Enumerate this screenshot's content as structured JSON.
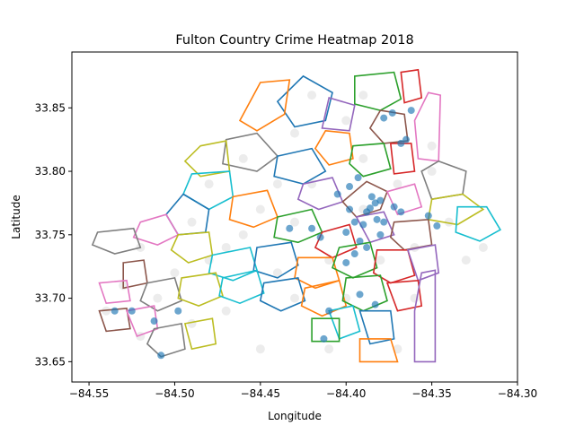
{
  "chart_data": {
    "type": "scatter",
    "title": "Fulton Country Crime Heatmap 2018",
    "xlabel": "Longitude",
    "ylabel": "Latitude",
    "xlim": [
      -84.56,
      -84.3
    ],
    "ylim": [
      33.634,
      33.894
    ],
    "xticks": [
      -84.55,
      -84.5,
      -84.45,
      -84.4,
      -84.35,
      -84.3
    ],
    "xtick_labels": [
      "−84.55",
      "−84.50",
      "−84.45",
      "−84.40",
      "−84.35",
      "−84.30"
    ],
    "yticks": [
      33.65,
      33.7,
      33.75,
      33.8,
      33.85
    ],
    "ytick_labels": [
      "33.65",
      "33.70",
      "33.75",
      "33.80",
      "33.85"
    ],
    "grid": false,
    "legend": "none",
    "points_color": "#1f77b4",
    "background_points_color": "#c8c8c8",
    "boundary_colors": [
      "#1f77b4",
      "#ff7f0e",
      "#2ca02c",
      "#d62728",
      "#9467bd",
      "#8c564b",
      "#e377c2",
      "#7f7f7f",
      "#bcbd22",
      "#17becf"
    ],
    "dense_points": [
      [
        -84.385,
        33.78
      ],
      [
        -84.383,
        33.775
      ],
      [
        -84.38,
        33.777
      ],
      [
        -84.386,
        33.771
      ],
      [
        -84.388,
        33.768
      ],
      [
        -84.382,
        33.762
      ],
      [
        -84.378,
        33.76
      ],
      [
        -84.39,
        33.758
      ],
      [
        -84.395,
        33.76
      ],
      [
        -84.4,
        33.752
      ],
      [
        -84.392,
        33.745
      ],
      [
        -84.388,
        33.74
      ],
      [
        -84.395,
        33.735
      ],
      [
        -84.4,
        33.728
      ],
      [
        -84.365,
        33.825
      ],
      [
        -84.368,
        33.822
      ],
      [
        -84.362,
        33.848
      ],
      [
        -84.378,
        33.842
      ],
      [
        -84.373,
        33.846
      ],
      [
        -84.393,
        33.795
      ],
      [
        -84.398,
        33.788
      ],
      [
        -84.405,
        33.782
      ],
      [
        -84.372,
        33.772
      ],
      [
        -84.368,
        33.768
      ],
      [
        -84.352,
        33.765
      ],
      [
        -84.347,
        33.757
      ],
      [
        -84.415,
        33.748
      ],
      [
        -84.42,
        33.755
      ],
      [
        -84.41,
        33.69
      ],
      [
        -84.392,
        33.703
      ],
      [
        -84.383,
        33.695
      ],
      [
        -84.413,
        33.668
      ],
      [
        -84.508,
        33.655
      ],
      [
        -84.512,
        33.682
      ],
      [
        -84.498,
        33.69
      ],
      [
        -84.525,
        33.69
      ],
      [
        -84.535,
        33.69
      ],
      [
        -84.433,
        33.755
      ],
      [
        -84.398,
        33.77
      ],
      [
        -84.38,
        33.75
      ]
    ],
    "background_points": [
      [
        -84.54,
        33.69
      ],
      [
        -84.53,
        33.71
      ],
      [
        -84.52,
        33.74
      ],
      [
        -84.51,
        33.7
      ],
      [
        -84.5,
        33.72
      ],
      [
        -84.49,
        33.76
      ],
      [
        -84.48,
        33.79
      ],
      [
        -84.47,
        33.74
      ],
      [
        -84.46,
        33.81
      ],
      [
        -84.45,
        33.77
      ],
      [
        -84.44,
        33.72
      ],
      [
        -84.43,
        33.83
      ],
      [
        -84.42,
        33.79
      ],
      [
        -84.41,
        33.73
      ],
      [
        -84.4,
        33.84
      ],
      [
        -84.39,
        33.81
      ],
      [
        -84.38,
        33.73
      ],
      [
        -84.37,
        33.79
      ],
      [
        -84.36,
        33.74
      ],
      [
        -84.35,
        33.8
      ],
      [
        -84.34,
        33.76
      ],
      [
        -84.33,
        33.73
      ],
      [
        -84.36,
        33.7
      ],
      [
        -84.37,
        33.66
      ],
      [
        -84.43,
        33.7
      ],
      [
        -84.47,
        33.69
      ],
      [
        -84.49,
        33.68
      ],
      [
        -84.45,
        33.66
      ],
      [
        -84.41,
        33.66
      ],
      [
        -84.39,
        33.77
      ],
      [
        -84.44,
        33.79
      ],
      [
        -84.42,
        33.86
      ],
      [
        -84.39,
        33.86
      ],
      [
        -84.35,
        33.82
      ],
      [
        -84.32,
        33.74
      ],
      [
        -84.52,
        33.67
      ],
      [
        -84.48,
        33.73
      ],
      [
        -84.46,
        33.75
      ],
      [
        -84.43,
        33.76
      ],
      [
        -84.4,
        33.7
      ]
    ],
    "boundaries": [
      [
        [
          -84.44,
          33.855
        ],
        [
          -84.425,
          33.875
        ],
        [
          -84.408,
          33.862
        ],
        [
          -84.412,
          33.84
        ],
        [
          -84.43,
          33.835
        ]
      ],
      [
        [
          -84.462,
          33.84
        ],
        [
          -84.45,
          33.87
        ],
        [
          -84.433,
          33.872
        ],
        [
          -84.436,
          33.845
        ],
        [
          -84.452,
          33.832
        ]
      ],
      [
        [
          -84.395,
          33.875
        ],
        [
          -84.372,
          33.878
        ],
        [
          -84.368,
          33.857
        ],
        [
          -84.38,
          33.848
        ],
        [
          -84.395,
          33.853
        ]
      ],
      [
        [
          -84.368,
          33.878
        ],
        [
          -84.358,
          33.88
        ],
        [
          -84.356,
          33.858
        ],
        [
          -84.366,
          33.854
        ]
      ],
      [
        [
          -84.41,
          33.858
        ],
        [
          -84.395,
          33.852
        ],
        [
          -84.398,
          33.832
        ],
        [
          -84.414,
          33.834
        ]
      ],
      [
        [
          -84.38,
          33.848
        ],
        [
          -84.366,
          33.845
        ],
        [
          -84.364,
          33.824
        ],
        [
          -84.378,
          33.822
        ],
        [
          -84.386,
          33.834
        ]
      ],
      [
        [
          -84.352,
          33.862
        ],
        [
          -84.345,
          33.86
        ],
        [
          -84.346,
          33.808
        ],
        [
          -84.358,
          33.81
        ],
        [
          -84.36,
          33.84
        ]
      ],
      [
        [
          -84.47,
          33.825
        ],
        [
          -84.452,
          33.83
        ],
        [
          -84.44,
          33.812
        ],
        [
          -84.452,
          33.8
        ],
        [
          -84.472,
          33.806
        ]
      ],
      [
        [
          -84.485,
          33.82
        ],
        [
          -84.47,
          33.824
        ],
        [
          -84.468,
          33.8
        ],
        [
          -84.485,
          33.796
        ],
        [
          -84.494,
          33.808
        ]
      ],
      [
        [
          -84.49,
          33.798
        ],
        [
          -84.468,
          33.8
        ],
        [
          -84.466,
          33.78
        ],
        [
          -84.48,
          33.77
        ],
        [
          -84.495,
          33.782
        ]
      ],
      [
        [
          -84.44,
          33.812
        ],
        [
          -84.42,
          33.818
        ],
        [
          -84.412,
          33.8
        ],
        [
          -84.425,
          33.79
        ],
        [
          -84.442,
          33.796
        ]
      ],
      [
        [
          -84.412,
          33.832
        ],
        [
          -84.398,
          33.83
        ],
        [
          -84.396,
          33.81
        ],
        [
          -84.41,
          33.805
        ],
        [
          -84.418,
          33.818
        ]
      ],
      [
        [
          -84.396,
          33.82
        ],
        [
          -84.378,
          33.822
        ],
        [
          -84.374,
          33.802
        ],
        [
          -84.39,
          33.796
        ],
        [
          -84.398,
          33.806
        ]
      ],
      [
        [
          -84.374,
          33.822
        ],
        [
          -84.362,
          33.822
        ],
        [
          -84.36,
          33.8
        ],
        [
          -84.372,
          33.798
        ]
      ],
      [
        [
          -84.425,
          33.79
        ],
        [
          -84.408,
          33.795
        ],
        [
          -84.402,
          33.776
        ],
        [
          -84.416,
          33.77
        ],
        [
          -84.428,
          33.778
        ]
      ],
      [
        [
          -84.402,
          33.776
        ],
        [
          -84.388,
          33.792
        ],
        [
          -84.376,
          33.784
        ],
        [
          -84.38,
          33.77
        ],
        [
          -84.394,
          33.764
        ]
      ],
      [
        [
          -84.376,
          33.784
        ],
        [
          -84.36,
          33.79
        ],
        [
          -84.356,
          33.772
        ],
        [
          -84.37,
          33.766
        ]
      ],
      [
        [
          -84.356,
          33.8
        ],
        [
          -84.346,
          33.808
        ],
        [
          -84.33,
          33.8
        ],
        [
          -84.332,
          33.782
        ],
        [
          -84.35,
          33.778
        ]
      ],
      [
        [
          -84.35,
          33.778
        ],
        [
          -84.332,
          33.782
        ],
        [
          -84.32,
          33.77
        ],
        [
          -84.335,
          33.758
        ],
        [
          -84.352,
          33.762
        ]
      ],
      [
        [
          -84.335,
          33.772
        ],
        [
          -84.318,
          33.772
        ],
        [
          -84.31,
          33.754
        ],
        [
          -84.322,
          33.745
        ],
        [
          -84.336,
          33.752
        ]
      ],
      [
        [
          -84.495,
          33.782
        ],
        [
          -84.48,
          33.77
        ],
        [
          -84.482,
          33.752
        ],
        [
          -84.498,
          33.75
        ],
        [
          -84.505,
          33.766
        ]
      ],
      [
        [
          -84.466,
          33.78
        ],
        [
          -84.446,
          33.785
        ],
        [
          -84.44,
          33.764
        ],
        [
          -84.454,
          33.756
        ],
        [
          -84.468,
          33.762
        ]
      ],
      [
        [
          -84.44,
          33.764
        ],
        [
          -84.42,
          33.77
        ],
        [
          -84.414,
          33.752
        ],
        [
          -84.428,
          33.744
        ],
        [
          -84.442,
          33.748
        ]
      ],
      [
        [
          -84.414,
          33.752
        ],
        [
          -84.398,
          33.758
        ],
        [
          -84.394,
          33.74
        ],
        [
          -84.408,
          33.732
        ],
        [
          -84.418,
          33.74
        ]
      ],
      [
        [
          -84.394,
          33.764
        ],
        [
          -84.378,
          33.768
        ],
        [
          -84.372,
          33.75
        ],
        [
          -84.386,
          33.744
        ]
      ],
      [
        [
          -84.372,
          33.76
        ],
        [
          -84.352,
          33.762
        ],
        [
          -84.35,
          33.742
        ],
        [
          -84.366,
          33.738
        ],
        [
          -84.374,
          33.748
        ]
      ],
      [
        [
          -84.52,
          33.76
        ],
        [
          -84.505,
          33.766
        ],
        [
          -84.498,
          33.75
        ],
        [
          -84.51,
          33.742
        ],
        [
          -84.524,
          33.748
        ]
      ],
      [
        [
          -84.545,
          33.752
        ],
        [
          -84.524,
          33.755
        ],
        [
          -84.52,
          33.74
        ],
        [
          -84.535,
          33.735
        ],
        [
          -84.548,
          33.742
        ]
      ],
      [
        [
          -84.498,
          33.75
        ],
        [
          -84.48,
          33.752
        ],
        [
          -84.478,
          33.734
        ],
        [
          -84.492,
          33.728
        ],
        [
          -84.502,
          33.738
        ]
      ],
      [
        [
          -84.478,
          33.734
        ],
        [
          -84.456,
          33.74
        ],
        [
          -84.452,
          33.722
        ],
        [
          -84.466,
          33.714
        ],
        [
          -84.48,
          33.72
        ]
      ],
      [
        [
          -84.452,
          33.74
        ],
        [
          -84.432,
          33.744
        ],
        [
          -84.428,
          33.726
        ],
        [
          -84.44,
          33.716
        ],
        [
          -84.454,
          33.722
        ]
      ],
      [
        [
          -84.428,
          33.732
        ],
        [
          -84.408,
          33.732
        ],
        [
          -84.404,
          33.714
        ],
        [
          -84.418,
          33.708
        ],
        [
          -84.43,
          33.716
        ]
      ],
      [
        [
          -84.404,
          33.74
        ],
        [
          -84.386,
          33.744
        ],
        [
          -84.382,
          33.724
        ],
        [
          -84.396,
          33.716
        ],
        [
          -84.408,
          33.724
        ]
      ],
      [
        [
          -84.382,
          33.738
        ],
        [
          -84.364,
          33.738
        ],
        [
          -84.36,
          33.718
        ],
        [
          -84.374,
          33.712
        ],
        [
          -84.384,
          33.72
        ]
      ],
      [
        [
          -84.364,
          33.738
        ],
        [
          -84.348,
          33.742
        ],
        [
          -84.346,
          33.72
        ],
        [
          -84.358,
          33.714
        ]
      ],
      [
        [
          -84.53,
          33.728
        ],
        [
          -84.518,
          33.73
        ],
        [
          -84.516,
          33.712
        ],
        [
          -84.53,
          33.708
        ]
      ],
      [
        [
          -84.544,
          33.712
        ],
        [
          -84.528,
          33.714
        ],
        [
          -84.526,
          33.698
        ],
        [
          -84.54,
          33.696
        ]
      ],
      [
        [
          -84.516,
          33.712
        ],
        [
          -84.5,
          33.716
        ],
        [
          -84.496,
          33.698
        ],
        [
          -84.51,
          33.69
        ],
        [
          -84.52,
          33.698
        ]
      ],
      [
        [
          -84.496,
          33.716
        ],
        [
          -84.476,
          33.72
        ],
        [
          -84.472,
          33.702
        ],
        [
          -84.486,
          33.694
        ],
        [
          -84.498,
          33.7
        ]
      ],
      [
        [
          -84.472,
          33.716
        ],
        [
          -84.452,
          33.722
        ],
        [
          -84.448,
          33.704
        ],
        [
          -84.462,
          33.696
        ],
        [
          -84.474,
          33.702
        ]
      ],
      [
        [
          -84.448,
          33.712
        ],
        [
          -84.428,
          33.716
        ],
        [
          -84.424,
          33.698
        ],
        [
          -84.438,
          33.69
        ],
        [
          -84.45,
          33.698
        ]
      ],
      [
        [
          -84.424,
          33.708
        ],
        [
          -84.404,
          33.714
        ],
        [
          -84.4,
          33.694
        ],
        [
          -84.414,
          33.686
        ],
        [
          -84.426,
          33.694
        ]
      ],
      [
        [
          -84.4,
          33.716
        ],
        [
          -84.38,
          33.718
        ],
        [
          -84.376,
          33.698
        ],
        [
          -84.39,
          33.69
        ],
        [
          -84.402,
          33.698
        ]
      ],
      [
        [
          -84.376,
          33.712
        ],
        [
          -84.358,
          33.714
        ],
        [
          -84.356,
          33.694
        ],
        [
          -84.37,
          33.69
        ]
      ],
      [
        [
          -84.356,
          33.72
        ],
        [
          -84.348,
          33.722
        ],
        [
          -84.348,
          33.65
        ],
        [
          -84.36,
          33.65
        ],
        [
          -84.36,
          33.69
        ]
      ],
      [
        [
          -84.544,
          33.69
        ],
        [
          -84.528,
          33.692
        ],
        [
          -84.526,
          33.676
        ],
        [
          -84.54,
          33.674
        ]
      ],
      [
        [
          -84.528,
          33.69
        ],
        [
          -84.512,
          33.694
        ],
        [
          -84.51,
          33.676
        ],
        [
          -84.522,
          33.67
        ]
      ],
      [
        [
          -84.512,
          33.676
        ],
        [
          -84.496,
          33.68
        ],
        [
          -84.494,
          33.66
        ],
        [
          -84.508,
          33.654
        ],
        [
          -84.516,
          33.664
        ]
      ],
      [
        [
          -84.494,
          33.68
        ],
        [
          -84.478,
          33.684
        ],
        [
          -84.476,
          33.664
        ],
        [
          -84.49,
          33.66
        ]
      ],
      [
        [
          -84.41,
          33.69
        ],
        [
          -84.396,
          33.694
        ],
        [
          -84.392,
          33.674
        ],
        [
          -84.404,
          33.668
        ]
      ],
      [
        [
          -84.392,
          33.69
        ],
        [
          -84.374,
          33.69
        ],
        [
          -84.372,
          33.668
        ],
        [
          -84.386,
          33.664
        ]
      ],
      [
        [
          -84.392,
          33.668
        ],
        [
          -84.374,
          33.668
        ],
        [
          -84.37,
          33.65
        ],
        [
          -84.392,
          33.65
        ]
      ],
      [
        [
          -84.42,
          33.684
        ],
        [
          -84.404,
          33.684
        ],
        [
          -84.404,
          33.666
        ],
        [
          -84.42,
          33.666
        ]
      ]
    ]
  }
}
